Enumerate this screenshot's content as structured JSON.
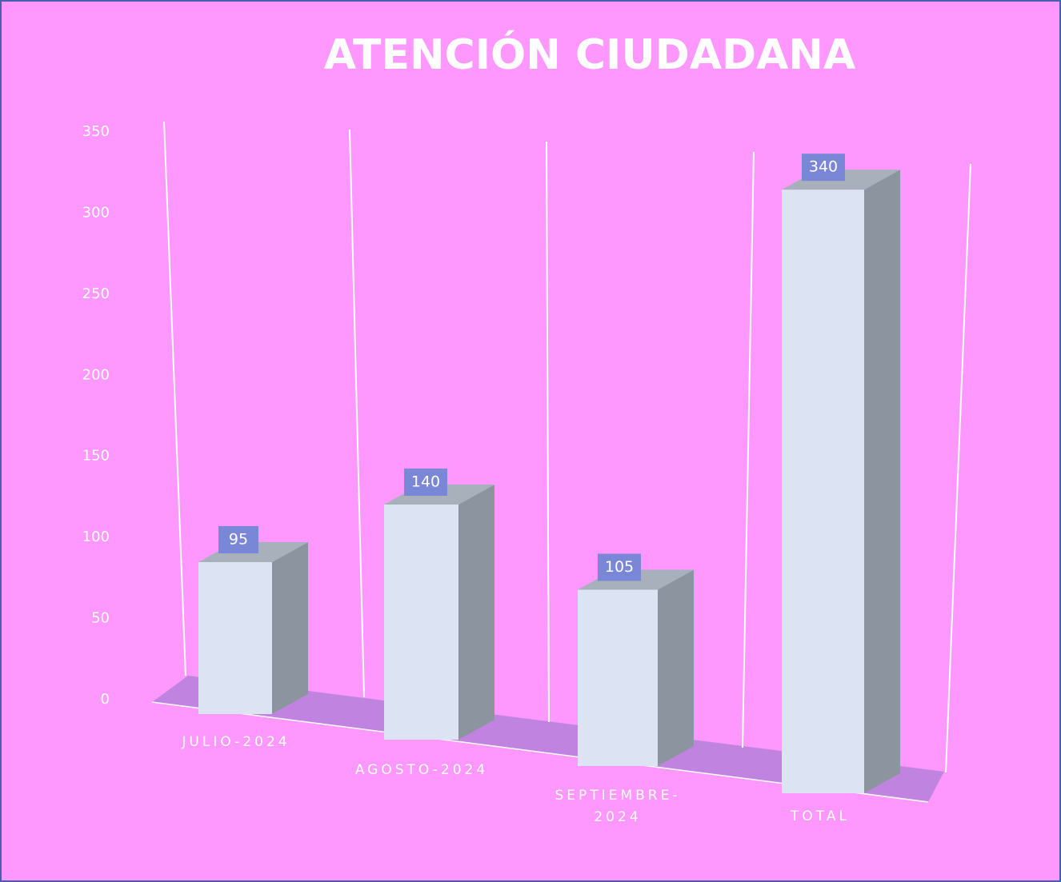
{
  "chart_data": {
    "type": "bar3d",
    "title": "ATENCIÓN CIUDADANA",
    "categories": [
      "JULIO-2024",
      "AGOSTO-2024",
      "SEPTIEMBRE-2024",
      "TOTAL"
    ],
    "values": [
      95,
      140,
      105,
      340
    ],
    "color": "#dce3f2",
    "ylim": [
      0,
      350
    ],
    "yticks": [
      0,
      50,
      100,
      150,
      200,
      250,
      300,
      350
    ]
  }
}
